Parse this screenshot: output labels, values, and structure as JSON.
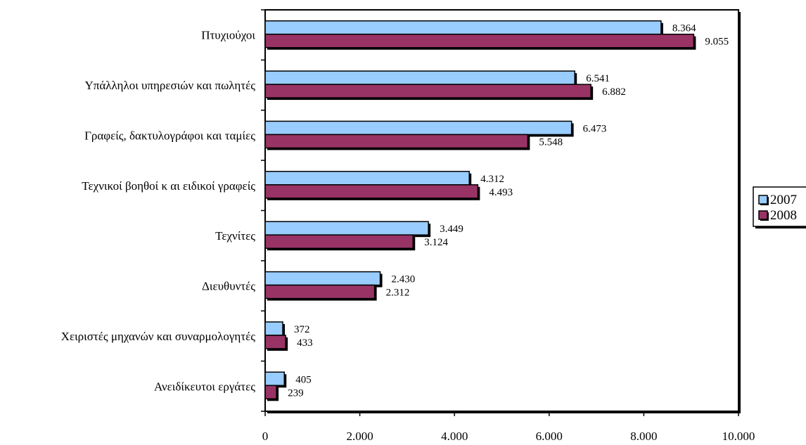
{
  "chart_data": {
    "type": "bar",
    "orientation": "horizontal",
    "categories": [
      "Πτυχιούχοι",
      "Υπάλληλοι υπηρεσιών και πωλητές",
      "Γραφείς, δακτυλογράφοι και ταμίες",
      "Τεχνικοί βοηθοί κ αι ειδικοί γραφείς",
      "Τεχνίτες",
      "Διευθυντές",
      "Χειριστές μηχανών και συναρμολογητές",
      "Ανειδίκευτοι εργάτες"
    ],
    "series": [
      {
        "name": "2007",
        "color": "#99ccff",
        "values": [
          8364,
          6541,
          6473,
          4312,
          3449,
          2430,
          372,
          405
        ],
        "labels": [
          "8.364",
          "6.541",
          "6.473",
          "4.312",
          "3.449",
          "2.430",
          "372",
          "405"
        ]
      },
      {
        "name": "2008",
        "color": "#993366",
        "values": [
          9055,
          6882,
          5548,
          4493,
          3124,
          2312,
          433,
          239
        ],
        "labels": [
          "9.055",
          "6.882",
          "5.548",
          "4.493",
          "3.124",
          "2.312",
          "433",
          "239"
        ]
      }
    ],
    "xlim": [
      0,
      10000
    ],
    "x_ticks": [
      0,
      2000,
      4000,
      6000,
      8000,
      10000
    ],
    "x_tick_labels": [
      "0",
      "2.000",
      "4.000",
      "6.000",
      "8.000",
      "10.000"
    ],
    "grid": false,
    "legend_position": "right"
  }
}
